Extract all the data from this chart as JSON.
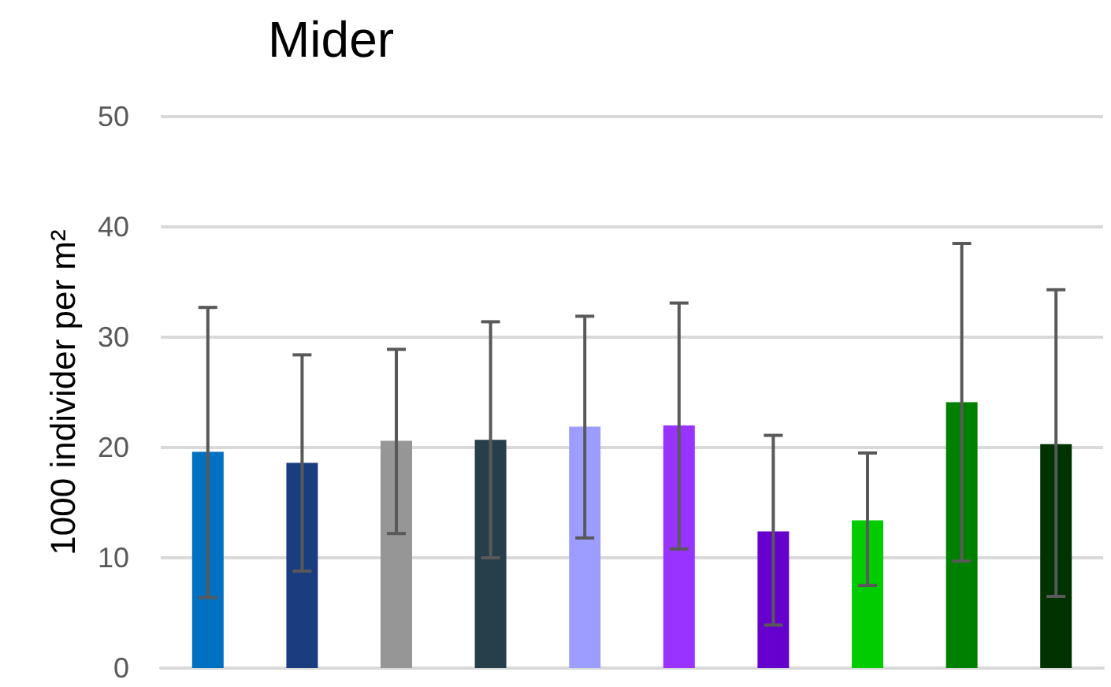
{
  "chart_data": {
    "type": "bar",
    "title": "Mider",
    "ylabel": "1000 individer per m²",
    "categories": [
      null,
      null,
      null,
      null,
      null,
      null,
      null,
      null,
      null,
      null
    ],
    "values": [
      19.6,
      18.6,
      20.6,
      20.7,
      21.9,
      22.0,
      12.4,
      13.4,
      24.1,
      20.3
    ],
    "colors": [
      "#0070c0",
      "#1a3d80",
      "#969696",
      "#263f4a",
      "#9d9dff",
      "#9933ff",
      "#6600cc",
      "#00cc00",
      "#008000",
      "#003300"
    ],
    "errors": [
      [
        6.4,
        32.7
      ],
      [
        8.8,
        28.4
      ],
      [
        12.2,
        28.9
      ],
      [
        10.0,
        31.4
      ],
      [
        11.8,
        31.9
      ],
      [
        10.8,
        33.1
      ],
      [
        3.9,
        21.1
      ],
      [
        7.5,
        19.5
      ],
      [
        9.7,
        38.5
      ],
      [
        6.5,
        34.3
      ]
    ],
    "ylim": [
      0,
      50
    ],
    "yticks": [
      0,
      10,
      20,
      30,
      40,
      50
    ],
    "grid": "y"
  }
}
